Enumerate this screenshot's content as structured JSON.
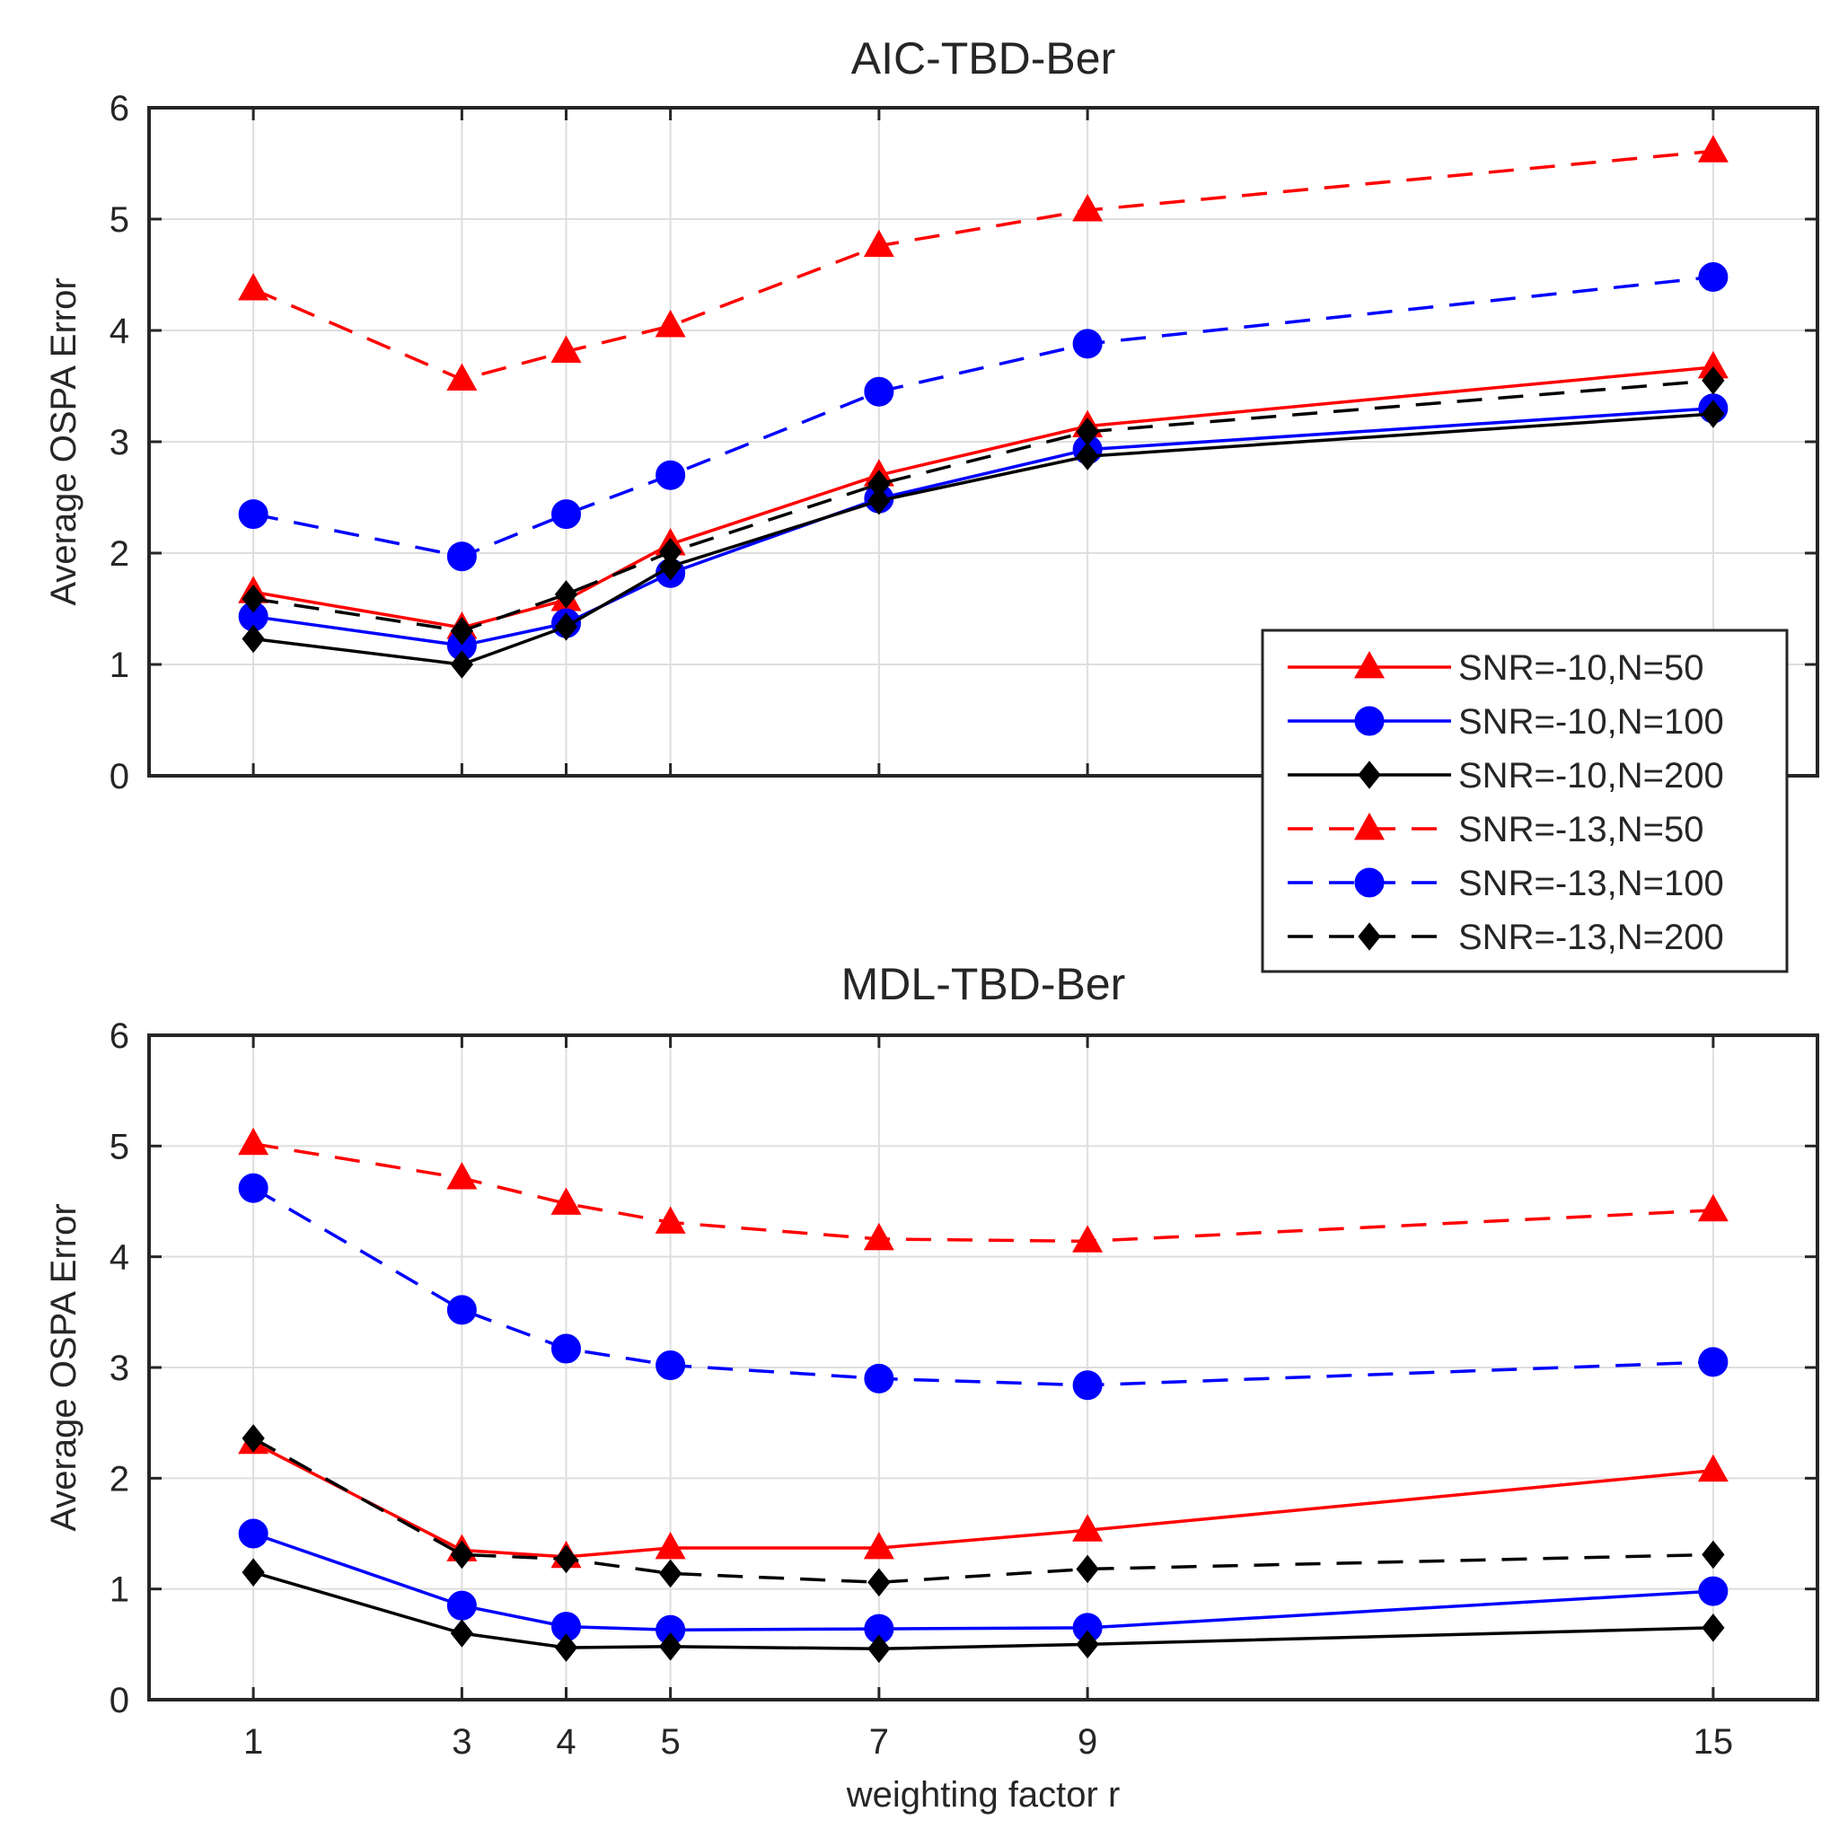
{
  "chart_data": [
    {
      "type": "line",
      "title": "AIC-TBD-Ber",
      "xlabel": "",
      "ylabel": "Average OSPA Error",
      "x": [
        1,
        3,
        4,
        5,
        7,
        9,
        15
      ],
      "xlim": [
        0,
        16
      ],
      "ylim": [
        0,
        6
      ],
      "yticks": [
        0,
        1,
        2,
        3,
        4,
        5,
        6
      ],
      "grid": true,
      "legend": "bottom-right",
      "series": [
        {
          "name": "SNR=-10,N=50",
          "color": "#ff0000",
          "dash": "solid",
          "marker": "triangle",
          "values": [
            1.65,
            1.33,
            1.58,
            2.08,
            2.7,
            3.14,
            3.67
          ]
        },
        {
          "name": "SNR=-10,N=100",
          "color": "#0000ff",
          "dash": "solid",
          "marker": "circle",
          "values": [
            1.43,
            1.17,
            1.37,
            1.82,
            2.49,
            2.93,
            3.3
          ]
        },
        {
          "name": "SNR=-10,N=200",
          "color": "#000000",
          "dash": "solid",
          "marker": "diamond",
          "values": [
            1.23,
            1.0,
            1.34,
            1.88,
            2.47,
            2.87,
            3.25
          ]
        },
        {
          "name": "SNR=-13,N=50",
          "color": "#ff0000",
          "dash": "dashed",
          "marker": "triangle",
          "values": [
            4.37,
            3.56,
            3.81,
            4.04,
            4.76,
            5.08,
            5.61
          ]
        },
        {
          "name": "SNR=-13,N=100",
          "color": "#0000ff",
          "dash": "dashed",
          "marker": "circle",
          "values": [
            2.35,
            1.97,
            2.35,
            2.7,
            3.45,
            3.88,
            4.48
          ]
        },
        {
          "name": "SNR=-13,N=200",
          "color": "#000000",
          "dash": "dashed",
          "marker": "diamond",
          "values": [
            1.59,
            1.3,
            1.63,
            2.01,
            2.62,
            3.09,
            3.55
          ]
        }
      ]
    },
    {
      "type": "line",
      "title": "MDL-TBD-Ber",
      "xlabel": "weighting factor r",
      "ylabel": "Average OSPA Error",
      "x": [
        1,
        3,
        4,
        5,
        7,
        9,
        15
      ],
      "xlim": [
        0,
        16
      ],
      "ylim": [
        0,
        6
      ],
      "yticks": [
        0,
        1,
        2,
        3,
        4,
        5,
        6
      ],
      "grid": true,
      "legend": "none",
      "series": [
        {
          "name": "SNR=-10,N=50",
          "color": "#ff0000",
          "dash": "solid",
          "marker": "triangle",
          "values": [
            2.32,
            1.35,
            1.29,
            1.37,
            1.37,
            1.53,
            2.07
          ]
        },
        {
          "name": "SNR=-10,N=100",
          "color": "#0000ff",
          "dash": "solid",
          "marker": "circle",
          "values": [
            1.5,
            0.85,
            0.66,
            0.63,
            0.64,
            0.65,
            0.98
          ]
        },
        {
          "name": "SNR=-10,N=200",
          "color": "#000000",
          "dash": "solid",
          "marker": "diamond",
          "values": [
            1.15,
            0.6,
            0.47,
            0.48,
            0.46,
            0.5,
            0.65
          ]
        },
        {
          "name": "SNR=-13,N=50",
          "color": "#ff0000",
          "dash": "dashed",
          "marker": "triangle",
          "values": [
            5.02,
            4.71,
            4.48,
            4.31,
            4.16,
            4.14,
            4.42
          ]
        },
        {
          "name": "SNR=-13,N=100",
          "color": "#0000ff",
          "dash": "dashed",
          "marker": "circle",
          "values": [
            4.62,
            3.52,
            3.17,
            3.02,
            2.9,
            2.84,
            3.05
          ]
        },
        {
          "name": "SNR=-13,N=200",
          "color": "#000000",
          "dash": "dashed",
          "marker": "diamond",
          "values": [
            2.36,
            1.31,
            1.27,
            1.14,
            1.06,
            1.18,
            1.31
          ]
        }
      ]
    }
  ]
}
